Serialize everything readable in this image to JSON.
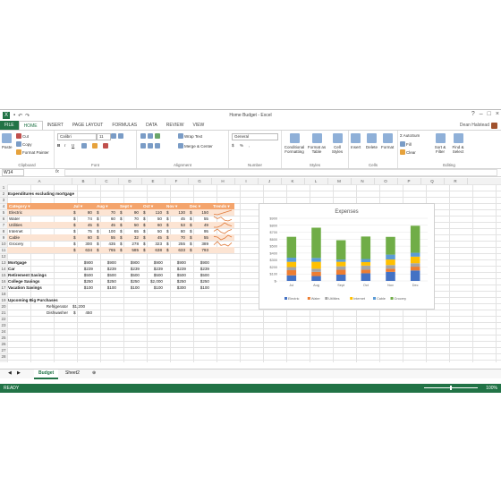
{
  "window": {
    "title": "Home Budget - Excel",
    "user": "Dean Halstead"
  },
  "tabs": [
    "FILE",
    "HOME",
    "INSERT",
    "PAGE LAYOUT",
    "FORMULAS",
    "DATA",
    "REVIEW",
    "VIEW"
  ],
  "ribbon": {
    "clipboard": {
      "paste": "Paste",
      "cut": "Cut",
      "copy": "Copy",
      "format_painter": "Format Painter",
      "label": "Clipboard"
    },
    "font": {
      "name": "Calibri",
      "size": "11",
      "label": "Font"
    },
    "alignment": {
      "wrap": "Wrap Text",
      "merge": "Merge & Center",
      "label": "Alignment"
    },
    "number": {
      "format": "General",
      "label": "Number"
    },
    "styles": {
      "cond": "Conditional Formatting",
      "table": "Format as Table",
      "cell": "Cell Styles",
      "label": "Styles"
    },
    "cells": {
      "insert": "Insert",
      "delete": "Delete",
      "format": "Format",
      "label": "Cells"
    },
    "editing": {
      "autosum": "AutoSum",
      "fill": "Fill",
      "clear": "Clear",
      "sort": "Sort & Filter",
      "find": "Find & Select",
      "label": "Editing"
    }
  },
  "formula_bar": {
    "name_box": "W14",
    "fx": "fx",
    "value": ""
  },
  "columns": [
    "A",
    "B",
    "C",
    "D",
    "E",
    "F",
    "G",
    "H",
    "I",
    "J",
    "K",
    "L",
    "M",
    "N",
    "O",
    "P",
    "Q",
    "R"
  ],
  "rows": [
    "1",
    "2",
    "3",
    "4",
    "5",
    "6",
    "7",
    "8",
    "9",
    "10",
    "11",
    "12",
    "13",
    "14",
    "15",
    "16",
    "17",
    "18",
    "19",
    "20",
    "21",
    "22",
    "23",
    "24",
    "25",
    "26",
    "27",
    "28"
  ],
  "sheet": {
    "title": "Expenditures excluding mortgage",
    "header": [
      "Category",
      "Jul",
      "Aug",
      "Sept",
      "Oct",
      "Nov",
      "Dec",
      "Trends"
    ],
    "table": [
      [
        "Electric",
        "$",
        "80",
        "$",
        "70",
        "$",
        "90",
        "$",
        "110",
        "$",
        "130",
        "$",
        "150"
      ],
      [
        "Water",
        "$",
        "74",
        "$",
        "60",
        "$",
        "70",
        "$",
        "50",
        "$",
        "45",
        "$",
        "55"
      ],
      [
        "Utilities",
        "$",
        "45",
        "$",
        "45",
        "$",
        "50",
        "$",
        "60",
        "$",
        "53",
        "$",
        "49"
      ],
      [
        "Internet",
        "$",
        "75",
        "$",
        "100",
        "$",
        "65",
        "$",
        "50",
        "$",
        "80",
        "$",
        "95"
      ],
      [
        "Cable",
        "$",
        "60",
        "$",
        "55",
        "$",
        "32",
        "$",
        "45",
        "$",
        "70",
        "$",
        "55"
      ],
      [
        "Grocery",
        "$",
        "300",
        "$",
        "435",
        "$",
        "278",
        "$",
        "323",
        "$",
        "255",
        "$",
        "389"
      ],
      [
        "",
        "$",
        "634",
        "$",
        "765",
        "$",
        "585",
        "$",
        "638",
        "$",
        "633",
        "$",
        "793"
      ]
    ],
    "fixed": [
      [
        "Mortgage",
        "$900",
        "$900",
        "$900",
        "$900",
        "$900",
        "$900"
      ],
      [
        "Car",
        "$239",
        "$239",
        "$239",
        "$239",
        "$239",
        "$239"
      ],
      [
        "Retirement Savings",
        "$500",
        "$500",
        "$500",
        "$500",
        "$500",
        "$500"
      ],
      [
        "College Savings",
        "$250",
        "$250",
        "$250",
        "$2,000",
        "$250",
        "$250"
      ],
      [
        "Vacation Savings",
        "$100",
        "$100",
        "$100",
        "$100",
        "$300",
        "$100"
      ]
    ],
    "upcoming_title": "Upcoming Big Purchases",
    "upcoming": [
      [
        "Refrigerator",
        "$1,200"
      ],
      [
        "Dishwasher",
        "$",
        "450"
      ]
    ]
  },
  "sheet_tabs": [
    "Budget",
    "Sheet2"
  ],
  "status": {
    "ready": "READY",
    "zoom": "100%"
  },
  "chart_data": {
    "type": "bar",
    "stacked": true,
    "title": "Expenses",
    "categories": [
      "Jul",
      "Aug",
      "Sept",
      "Oct",
      "Nov",
      "Dec"
    ],
    "series": [
      {
        "name": "Electric",
        "color": "#4472c4",
        "values": [
          80,
          70,
          90,
          110,
          130,
          150
        ]
      },
      {
        "name": "Water",
        "color": "#ed7d31",
        "values": [
          74,
          60,
          70,
          50,
          45,
          55
        ]
      },
      {
        "name": "Utilities",
        "color": "#a5a5a5",
        "values": [
          45,
          45,
          50,
          60,
          53,
          49
        ]
      },
      {
        "name": "Internet",
        "color": "#ffc000",
        "values": [
          75,
          100,
          65,
          50,
          80,
          95
        ]
      },
      {
        "name": "Cable",
        "color": "#5b9bd5",
        "values": [
          60,
          55,
          32,
          45,
          70,
          55
        ]
      },
      {
        "name": "Grocery",
        "color": "#70ad47",
        "values": [
          300,
          435,
          278,
          323,
          255,
          389
        ]
      }
    ],
    "top_series": {
      "color": "#f6a04d",
      "values": [
        634,
        765,
        585,
        638,
        633,
        793
      ]
    },
    "yticks": [
      "$-",
      "$100",
      "$200",
      "$300",
      "$400",
      "$500",
      "$600",
      "$700",
      "$800",
      "$900"
    ],
    "ylim": [
      0,
      900
    ],
    "legend": "bottom"
  }
}
